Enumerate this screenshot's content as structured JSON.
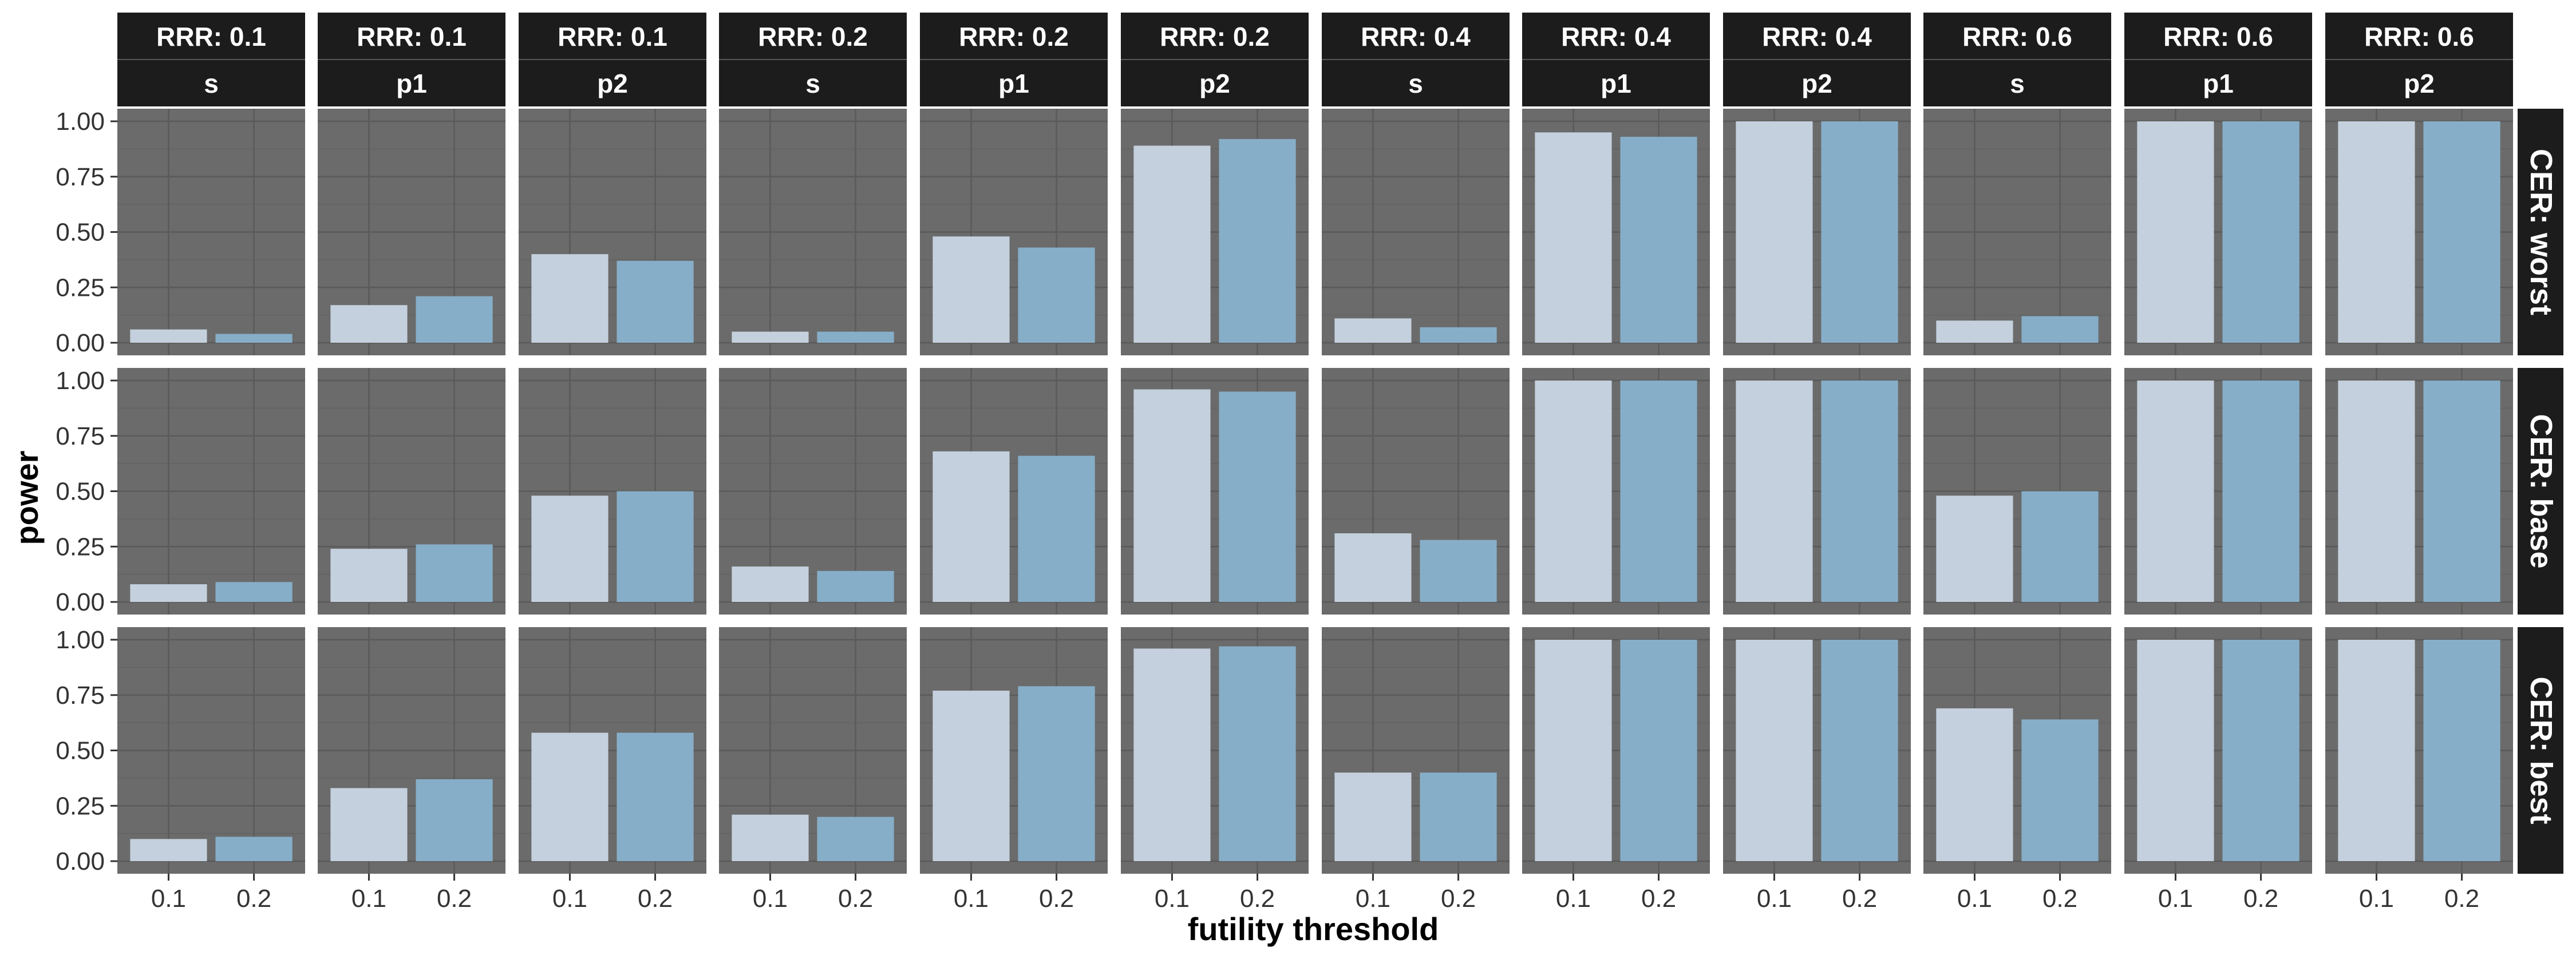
{
  "chart_data": {
    "type": "bar",
    "xlabel": "futility threshold",
    "ylabel": "power",
    "ylim": [
      0,
      1
    ],
    "y_ticks": [
      "0.00",
      "0.25",
      "0.50",
      "0.75",
      "1.00"
    ],
    "categories": [
      "0.1",
      "0.2"
    ],
    "column_facets": [
      {
        "rrr": "RRR: 0.1",
        "outcome": "s"
      },
      {
        "rrr": "RRR: 0.1",
        "outcome": "p1"
      },
      {
        "rrr": "RRR: 0.1",
        "outcome": "p2"
      },
      {
        "rrr": "RRR: 0.2",
        "outcome": "s"
      },
      {
        "rrr": "RRR: 0.2",
        "outcome": "p1"
      },
      {
        "rrr": "RRR: 0.2",
        "outcome": "p2"
      },
      {
        "rrr": "RRR: 0.4",
        "outcome": "s"
      },
      {
        "rrr": "RRR: 0.4",
        "outcome": "p1"
      },
      {
        "rrr": "RRR: 0.4",
        "outcome": "p2"
      },
      {
        "rrr": "RRR: 0.6",
        "outcome": "s"
      },
      {
        "rrr": "RRR: 0.6",
        "outcome": "p1"
      },
      {
        "rrr": "RRR: 0.6",
        "outcome": "p2"
      }
    ],
    "row_facets": [
      "CER: worst",
      "CER: base",
      "CER: best"
    ],
    "values": [
      [
        [
          0.06,
          0.04
        ],
        [
          0.17,
          0.21
        ],
        [
          0.4,
          0.37
        ],
        [
          0.05,
          0.05
        ],
        [
          0.48,
          0.43
        ],
        [
          0.89,
          0.92
        ],
        [
          0.11,
          0.07
        ],
        [
          0.95,
          0.93
        ],
        [
          1.0,
          1.0
        ],
        [
          0.1,
          0.12
        ],
        [
          1.0,
          1.0
        ],
        [
          1.0,
          1.0
        ]
      ],
      [
        [
          0.08,
          0.09
        ],
        [
          0.24,
          0.26
        ],
        [
          0.48,
          0.5
        ],
        [
          0.16,
          0.14
        ],
        [
          0.68,
          0.66
        ],
        [
          0.96,
          0.95
        ],
        [
          0.31,
          0.28
        ],
        [
          1.0,
          1.0
        ],
        [
          1.0,
          1.0
        ],
        [
          0.48,
          0.5
        ],
        [
          1.0,
          1.0
        ],
        [
          1.0,
          1.0
        ]
      ],
      [
        [
          0.1,
          0.11
        ],
        [
          0.33,
          0.37
        ],
        [
          0.58,
          0.58
        ],
        [
          0.21,
          0.2
        ],
        [
          0.77,
          0.79
        ],
        [
          0.96,
          0.97
        ],
        [
          0.4,
          0.4
        ],
        [
          1.0,
          1.0
        ],
        [
          1.0,
          1.0
        ],
        [
          0.69,
          0.64
        ],
        [
          1.0,
          1.0
        ],
        [
          1.0,
          1.0
        ]
      ]
    ],
    "bar_colors": [
      "#c4d0dd",
      "#87aec8"
    ],
    "grid": true,
    "panel_background": "#6b6b6b",
    "strip_background": "#1c1c1c",
    "legend": "none"
  }
}
